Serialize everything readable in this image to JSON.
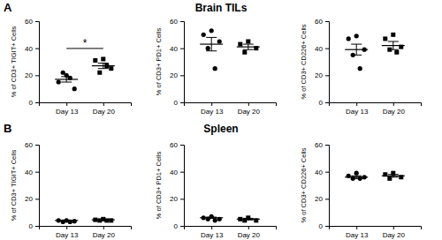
{
  "panels": [
    {
      "label": "A",
      "title": "Brain TILs"
    },
    {
      "label": "B",
      "title": "Spleen"
    }
  ],
  "chart_data": [
    {
      "type": "scatter",
      "y_label": "% of CD3+ TIGIT+ Cells",
      "color": "#000000",
      "ylim": [
        0,
        60
      ],
      "yticks": [
        0,
        20,
        40,
        60
      ],
      "series": [
        {
          "name": "Day 13",
          "marker": "circle",
          "values": [
            20,
            15,
            10,
            22,
            18
          ],
          "mean": 17,
          "error": 2
        },
        {
          "name": "Day 20",
          "marker": "square",
          "values": [
            32,
            31,
            25,
            22,
            27
          ],
          "mean": 27,
          "error": 2
        }
      ],
      "annotations": [
        {
          "text": "*",
          "between": [
            "Day 13",
            "Day 20"
          ]
        }
      ]
    },
    {
      "type": "scatter",
      "y_label": "% of CD3+ PD1+ Cells",
      "color": "#000000",
      "ylim": [
        0,
        60
      ],
      "yticks": [
        0,
        20,
        40,
        60
      ],
      "series": [
        {
          "name": "Day 13",
          "marker": "circle",
          "values": [
            53,
            50,
            45,
            40,
            25
          ],
          "mean": 43,
          "error": 5
        },
        {
          "name": "Day 20",
          "marker": "square",
          "values": [
            45,
            43,
            40,
            37
          ],
          "mean": 41,
          "error": 2
        }
      ]
    },
    {
      "type": "scatter",
      "y_label": "% of CD3+ CD226+ Cells",
      "color": "#000000",
      "ylim": [
        0,
        60
      ],
      "yticks": [
        0,
        20,
        40,
        60
      ],
      "series": [
        {
          "name": "Day 13",
          "marker": "circle",
          "values": [
            49,
            47,
            39,
            35,
            25
          ],
          "mean": 39,
          "error": 4
        },
        {
          "name": "Day 20",
          "marker": "square",
          "values": [
            50,
            47,
            41,
            39,
            37
          ],
          "mean": 42,
          "error": 3
        }
      ]
    },
    {
      "type": "scatter",
      "y_label": "% of CD3+ TIGIT+ Cells",
      "color": "#000000",
      "ylim": [
        0,
        60
      ],
      "yticks": [
        0,
        20,
        40,
        60
      ],
      "series": [
        {
          "name": "Day 13",
          "marker": "circle",
          "values": [
            4,
            4,
            3.5,
            3,
            3
          ],
          "mean": 4,
          "error": 0.3
        },
        {
          "name": "Day 20",
          "marker": "square",
          "values": [
            5,
            4.5,
            4,
            4,
            4
          ],
          "mean": 4.5,
          "error": 0.3
        }
      ]
    },
    {
      "type": "scatter",
      "y_label": "% of CD3+ PD1+ Cells",
      "color": "#000000",
      "ylim": [
        0,
        60
      ],
      "yticks": [
        0,
        20,
        40,
        60
      ],
      "series": [
        {
          "name": "Day 13",
          "marker": "circle",
          "values": [
            7,
            6,
            5,
            5,
            4
          ],
          "mean": 6,
          "error": 0.5
        },
        {
          "name": "Day 20",
          "marker": "square",
          "values": [
            6,
            5,
            4,
            4
          ],
          "mean": 5,
          "error": 0.6
        }
      ]
    },
    {
      "type": "scatter",
      "y_label": "% of CD3+ CD226+ Cells",
      "color": "#000000",
      "ylim": [
        0,
        60
      ],
      "yticks": [
        0,
        20,
        40,
        60
      ],
      "series": [
        {
          "name": "Day 13",
          "marker": "circle",
          "values": [
            39,
            37,
            36,
            35,
            35
          ],
          "mean": 36,
          "error": 1
        },
        {
          "name": "Day 20",
          "marker": "square",
          "values": [
            39,
            38,
            36,
            35
          ],
          "mean": 37,
          "error": 1
        }
      ]
    }
  ]
}
